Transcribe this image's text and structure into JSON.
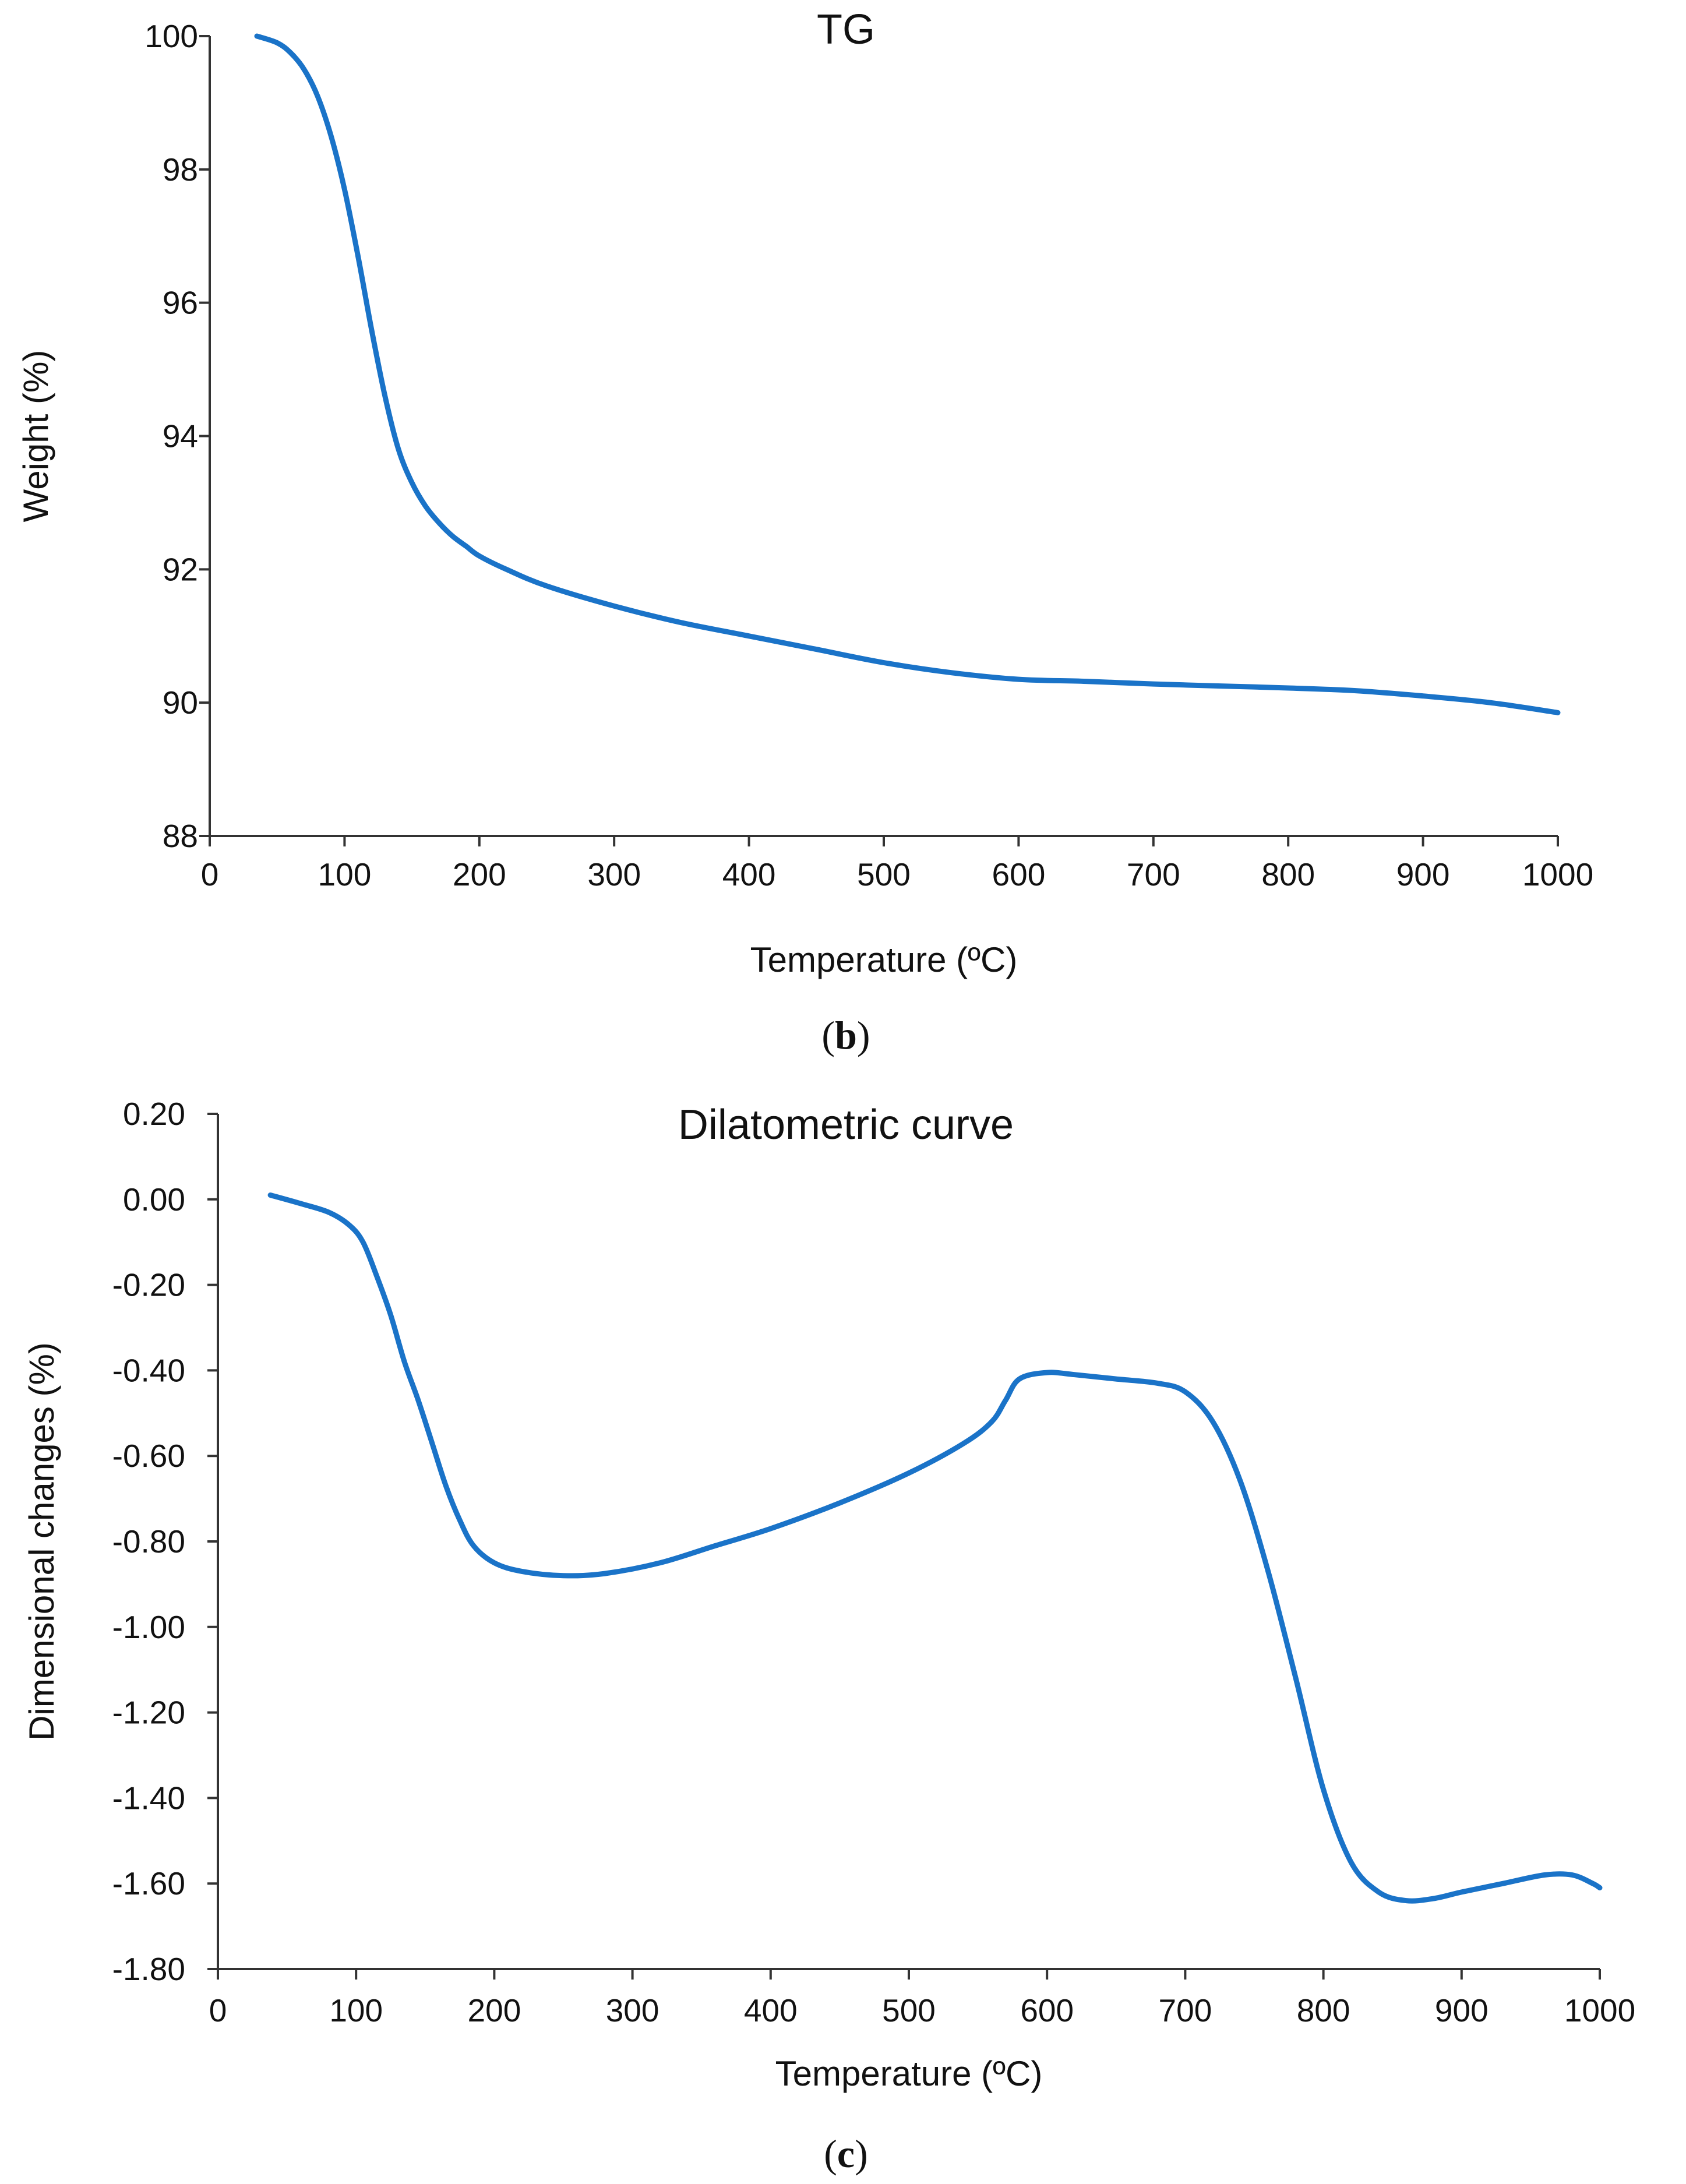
{
  "colors": {
    "series": "#1a73c8",
    "axis": "#333333",
    "text": "#111111"
  },
  "chart_data": [
    {
      "type": "line",
      "title": "TG",
      "xlabel": "Temperature (ºC)",
      "ylabel": "Weight (%)",
      "xlim": [
        0,
        1000
      ],
      "ylim": [
        88,
        100
      ],
      "x_ticks": [
        "0",
        "100",
        "200",
        "300",
        "400",
        "500",
        "600",
        "700",
        "800",
        "900",
        "1000"
      ],
      "y_ticks": [
        "100",
        "98",
        "96",
        "94",
        "92",
        "90",
        "88"
      ],
      "caption": {
        "open": "(",
        "letter": "b",
        "close": ")"
      },
      "series": [
        {
          "name": "TG",
          "x": [
            35,
            50,
            60,
            70,
            80,
            90,
            100,
            110,
            120,
            130,
            140,
            150,
            160,
            170,
            180,
            190,
            200,
            220,
            250,
            300,
            350,
            400,
            450,
            500,
            550,
            600,
            650,
            700,
            750,
            800,
            850,
            900,
            950,
            1000
          ],
          "y": [
            100,
            99.9,
            99.75,
            99.5,
            99.1,
            98.5,
            97.7,
            96.7,
            95.6,
            94.6,
            93.8,
            93.3,
            92.95,
            92.7,
            92.5,
            92.35,
            92.2,
            92.0,
            91.75,
            91.45,
            91.2,
            91.0,
            90.8,
            90.6,
            90.45,
            90.35,
            90.32,
            90.28,
            90.25,
            90.22,
            90.18,
            90.1,
            90.0,
            89.85
          ]
        }
      ]
    },
    {
      "type": "line",
      "title": "Dilatometric curve",
      "xlabel": "Temperature (ºC)",
      "ylabel": "Dimensional changes (%)",
      "xlim": [
        0,
        1000
      ],
      "ylim": [
        -1.8,
        0.2
      ],
      "x_ticks": [
        "0",
        "100",
        "200",
        "300",
        "400",
        "500",
        "600",
        "700",
        "800",
        "900",
        "1000"
      ],
      "y_ticks": [
        "0.20",
        "0.00",
        "-0.20",
        "-0.40",
        "-0.60",
        "-0.80",
        "-1.00",
        "-1.20",
        "-1.40",
        "-1.60",
        "-1.80"
      ],
      "caption": {
        "open": "(",
        "letter": "c",
        "close": ")"
      },
      "series": [
        {
          "name": "Dilatometric curve",
          "x": [
            38,
            60,
            80,
            95,
            105,
            115,
            125,
            135,
            145,
            155,
            165,
            175,
            185,
            200,
            220,
            250,
            280,
            320,
            360,
            400,
            450,
            500,
            540,
            560,
            570,
            580,
            600,
            620,
            650,
            680,
            700,
            720,
            740,
            760,
            780,
            800,
            820,
            840,
            860,
            880,
            900,
            930,
            960,
            980,
            995,
            1000
          ],
          "y": [
            0.01,
            -0.01,
            -0.03,
            -0.06,
            -0.1,
            -0.18,
            -0.27,
            -0.38,
            -0.47,
            -0.57,
            -0.67,
            -0.75,
            -0.81,
            -0.85,
            -0.87,
            -0.88,
            -0.875,
            -0.85,
            -0.81,
            -0.77,
            -0.71,
            -0.64,
            -0.57,
            -0.52,
            -0.47,
            -0.42,
            -0.405,
            -0.41,
            -0.42,
            -0.43,
            -0.45,
            -0.52,
            -0.66,
            -0.87,
            -1.12,
            -1.38,
            -1.55,
            -1.62,
            -1.64,
            -1.635,
            -1.62,
            -1.6,
            -1.58,
            -1.58,
            -1.6,
            -1.61
          ]
        }
      ]
    }
  ]
}
